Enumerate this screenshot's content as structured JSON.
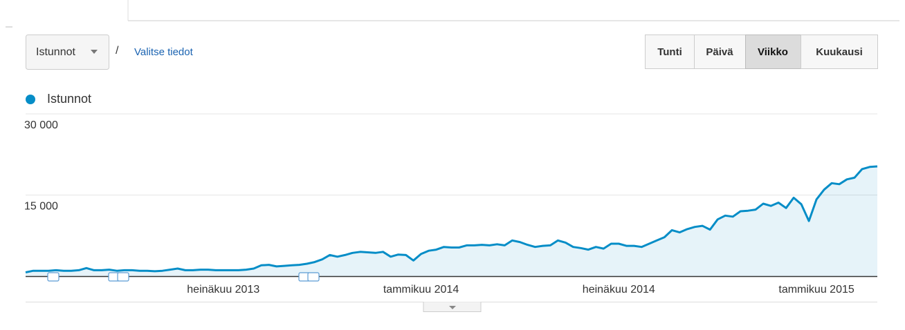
{
  "ui": {
    "metric_select": "Istunnot",
    "separator": "/",
    "link": "Valitse tiedot",
    "buttons": [
      "Tunti",
      "Päivä",
      "Viikko",
      "Kuukausi"
    ]
  },
  "chart_data": {
    "type": "area",
    "series": [
      {
        "name": "Istunnot",
        "color": "#058dc7",
        "values": [
          700,
          1000,
          1000,
          1000,
          1100,
          1000,
          1000,
          1100,
          1500,
          1100,
          1100,
          1200,
          1000,
          1100,
          1100,
          1000,
          1000,
          900,
          1000,
          1200,
          1400,
          1100,
          1100,
          1200,
          1200,
          1100,
          1100,
          1100,
          1100,
          1200,
          1400,
          2000,
          2100,
          1800,
          1900,
          2000,
          2100,
          2300,
          2600,
          3100,
          3900,
          3600,
          3900,
          4300,
          4500,
          4400,
          4300,
          4500,
          3600,
          4000,
          3900,
          2900,
          4100,
          4700,
          4900,
          5400,
          5300,
          5300,
          5700,
          5700,
          5800,
          5700,
          5900,
          5700,
          6600,
          6300,
          5800,
          5400,
          5600,
          5700,
          6600,
          6200,
          5400,
          5200,
          4900,
          5400,
          5100,
          6000,
          6000,
          5600,
          5600,
          5400,
          6000,
          6600,
          7200,
          8500,
          8100,
          8700,
          9100,
          9300,
          8600,
          10500,
          11200,
          11000,
          12000,
          12100,
          12300,
          13400,
          13000,
          13600,
          12600,
          14500,
          13300,
          10200,
          14200,
          16000,
          17200,
          17000,
          17900,
          18200,
          19800,
          20200,
          20300
        ]
      }
    ],
    "categories": [
      null,
      null,
      null,
      null,
      null,
      null,
      null,
      null,
      null,
      null,
      null,
      null,
      null,
      null,
      null,
      null,
      null,
      null,
      null,
      null,
      null,
      null,
      null,
      null,
      null,
      null,
      "heinäkuu 2013",
      null,
      null,
      null,
      null,
      null,
      null,
      null,
      null,
      null,
      null,
      null,
      null,
      null,
      null,
      null,
      null,
      null,
      null,
      null,
      null,
      null,
      null,
      null,
      null,
      null,
      "tammikuu 2014",
      null,
      null,
      null,
      null,
      null,
      null,
      null,
      null,
      null,
      null,
      null,
      null,
      null,
      null,
      null,
      null,
      null,
      null,
      null,
      null,
      null,
      null,
      null,
      null,
      null,
      "heinäkuu 2014",
      null,
      null,
      null,
      null,
      null,
      null,
      null,
      null,
      null,
      null,
      null,
      null,
      null,
      null,
      null,
      null,
      null,
      null,
      null,
      null,
      null,
      null,
      null,
      null,
      null,
      "tammikuu 2015",
      null,
      null,
      null,
      null,
      null,
      null,
      null,
      null
    ],
    "ylim": [
      0,
      30000
    ],
    "yticks": [
      {
        "value": 15000,
        "label": "15 000"
      },
      {
        "value": 30000,
        "label": "30 000"
      }
    ],
    "grid": true
  }
}
